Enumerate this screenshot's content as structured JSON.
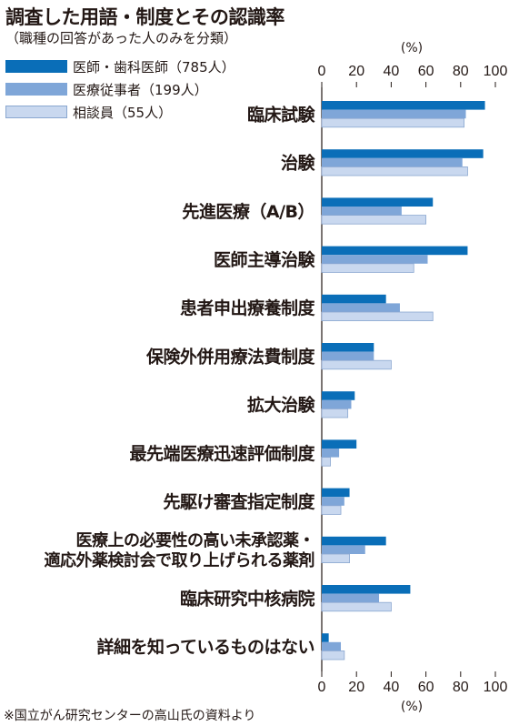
{
  "title": "調査した用語・制度とその認識率",
  "subtitle": "（職種の回答があった人のみを分類）",
  "source": "※国立がん研究センターの高山氏の資料より",
  "colors": {
    "series1": "#0a6eb8",
    "series2": "#7fa6d8",
    "series3": "#c9d8ef",
    "series3_border": "#8aa7d0",
    "axis": "#231815"
  },
  "chart_data": {
    "type": "bar",
    "orientation": "horizontal",
    "unit": "(%)",
    "xlim": [
      0,
      100
    ],
    "xticks": [
      0,
      20,
      40,
      60,
      80,
      100
    ],
    "grid": false,
    "legend_position": "top-left",
    "categories": [
      [
        "臨床試験"
      ],
      [
        "治験"
      ],
      [
        "先進医療（A/B）"
      ],
      [
        "医師主導治験"
      ],
      [
        "患者申出療養制度"
      ],
      [
        "保険外併用療法費制度"
      ],
      [
        "拡大治験"
      ],
      [
        "最先端医療迅速評価制度"
      ],
      [
        "先駆け審査指定制度"
      ],
      [
        "医療上の必要性の高い未承認薬・",
        "適応外薬検討会で取り上げられる薬剤"
      ],
      [
        "臨床研究中核病院"
      ],
      [
        "詳細を知っているものはない"
      ]
    ],
    "series": [
      {
        "name": "医師・歯科医師（785人）",
        "values": [
          94,
          93,
          64,
          84,
          37,
          30,
          19,
          20,
          16,
          37,
          51,
          4
        ]
      },
      {
        "name": "医療従事者（199人）",
        "values": [
          83,
          81,
          46,
          61,
          45,
          30,
          17,
          10,
          13,
          25,
          33,
          11
        ]
      },
      {
        "name": "相談員（55人）",
        "values": [
          82,
          84,
          60,
          53,
          64,
          40,
          15,
          5,
          11,
          16,
          40,
          13
        ]
      }
    ]
  }
}
